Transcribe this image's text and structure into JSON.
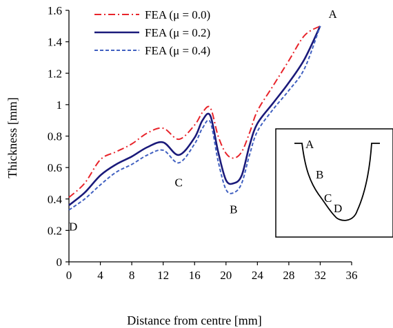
{
  "chart_data": {
    "type": "line",
    "title": "",
    "xlabel": "Distance from centre [mm]",
    "ylabel": "Thickness [mm]",
    "xlim": [
      0,
      36
    ],
    "ylim": [
      0,
      1.6
    ],
    "xticks": [
      0,
      4,
      8,
      12,
      16,
      20,
      24,
      28,
      32,
      36
    ],
    "yticks": [
      0,
      0.2,
      0.4,
      0.6,
      0.8,
      1,
      1.2,
      1.4,
      1.6
    ],
    "xtick_labels": [
      "0",
      "4",
      "8",
      "12",
      "16",
      "20",
      "24",
      "28",
      "32",
      "36"
    ],
    "ytick_labels": [
      "0",
      "0.2",
      "0.4",
      "0.6",
      "0.8",
      "1",
      "1.2",
      "1.4",
      "1.6"
    ],
    "grid": false,
    "legend_position": "top-left",
    "series": [
      {
        "name": "FEA (μ = 0.0)",
        "color": "#e8232a",
        "dash": "dash-dot",
        "x": [
          0,
          2,
          4,
          6,
          8,
          10,
          12,
          14,
          16,
          17,
          18,
          19,
          20,
          21,
          22,
          23,
          24,
          26,
          28,
          30,
          32
        ],
        "y": [
          0.41,
          0.5,
          0.65,
          0.7,
          0.75,
          0.82,
          0.85,
          0.78,
          0.87,
          0.95,
          0.98,
          0.8,
          0.69,
          0.66,
          0.7,
          0.82,
          0.96,
          1.12,
          1.28,
          1.44,
          1.5
        ]
      },
      {
        "name": "FEA (μ = 0.2)",
        "color": "#1a1a7a",
        "dash": "solid",
        "x": [
          0,
          2,
          4,
          6,
          8,
          10,
          12,
          14,
          16,
          17,
          18,
          19,
          20,
          21,
          22,
          23,
          24,
          26,
          28,
          30,
          32
        ],
        "y": [
          0.36,
          0.44,
          0.55,
          0.62,
          0.67,
          0.73,
          0.76,
          0.68,
          0.79,
          0.9,
          0.93,
          0.7,
          0.52,
          0.5,
          0.55,
          0.74,
          0.88,
          1.01,
          1.14,
          1.29,
          1.5
        ]
      },
      {
        "name": "FEA (μ = 0.4)",
        "color": "#3f5fc0",
        "dash": "dashed",
        "x": [
          0,
          2,
          4,
          6,
          8,
          10,
          12,
          14,
          16,
          17,
          18,
          19,
          20,
          21,
          22,
          23,
          24,
          26,
          28,
          30,
          32
        ],
        "y": [
          0.33,
          0.4,
          0.49,
          0.57,
          0.62,
          0.68,
          0.71,
          0.63,
          0.75,
          0.85,
          0.89,
          0.64,
          0.46,
          0.44,
          0.5,
          0.68,
          0.83,
          0.97,
          1.09,
          1.23,
          1.5
        ]
      }
    ],
    "point_labels": [
      {
        "text": "A",
        "x": 32,
        "y": 1.5
      },
      {
        "text": "B",
        "x": 21,
        "y": 0.44
      },
      {
        "text": "C",
        "x": 14,
        "y": 0.63
      },
      {
        "text": "D",
        "x": 0,
        "y": 0.33
      }
    ],
    "inset": {
      "labels": [
        "A",
        "B",
        "C",
        "D"
      ]
    }
  }
}
